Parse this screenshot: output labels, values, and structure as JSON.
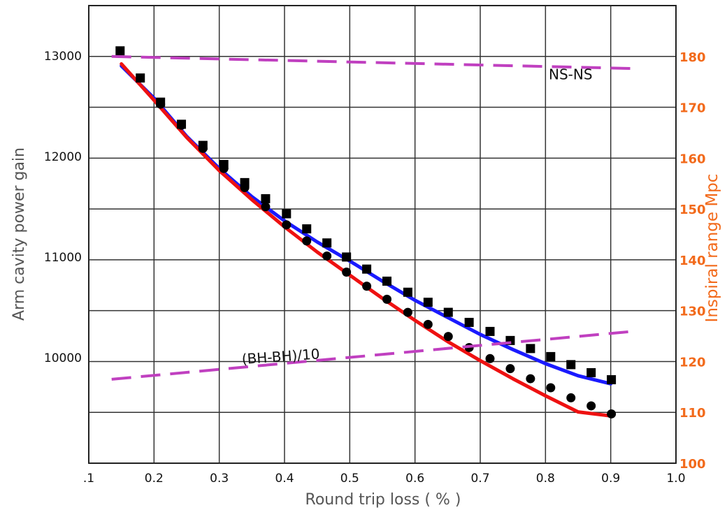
{
  "chart_data": {
    "type": "line",
    "xlabel": "Round trip loss (  %  )",
    "ylabel_left": "Arm cavity power gain",
    "ylabel_right": "Inspiral range Mpc",
    "xlim": [
      0.1,
      1.0
    ],
    "ylim_left": [
      8950,
      13500
    ],
    "ylim_right": [
      100,
      190
    ],
    "grid": true,
    "x_ticks": [
      ".1",
      "0.2",
      "0.3",
      "0.4",
      "0.5",
      "0.6",
      "0.7",
      "0.8",
      "0.9",
      "1.0"
    ],
    "y_ticks_left": [
      "10000",
      "11000",
      "12000",
      "13000"
    ],
    "y_ticks_right": [
      "100",
      "110",
      "120",
      "130",
      "140",
      "150",
      "160",
      "170",
      "180"
    ],
    "annotations": [
      {
        "text": "NS-NS",
        "x": 0.805,
        "y_right": 175.5
      },
      {
        "text": "(BH-BH)/10",
        "x": 0.335,
        "y_right": 119.5
      }
    ],
    "series": [
      {
        "axis": "left",
        "kind": "line",
        "color": "#1a1aff",
        "x": [
          0.15,
          0.2,
          0.25,
          0.3,
          0.35,
          0.4,
          0.45,
          0.5,
          0.55,
          0.6,
          0.65,
          0.7,
          0.75,
          0.8,
          0.85,
          0.9
        ],
        "y": [
          12900,
          12580,
          12200,
          11880,
          11600,
          11360,
          11150,
          10960,
          10760,
          10570,
          10400,
          10230,
          10080,
          9940,
          9820,
          9740
        ]
      },
      {
        "axis": "left",
        "kind": "line",
        "color": "#ee1111",
        "x": [
          0.15,
          0.2,
          0.25,
          0.3,
          0.35,
          0.4,
          0.45,
          0.5,
          0.55,
          0.6,
          0.65,
          0.7,
          0.75,
          0.8,
          0.85,
          0.9
        ],
        "y": [
          12920,
          12560,
          12190,
          11860,
          11570,
          11300,
          11050,
          10820,
          10590,
          10370,
          10160,
          9970,
          9790,
          9620,
          9460,
          9420
        ]
      },
      {
        "axis": "left",
        "kind": "markers",
        "marker": "square",
        "color": "#000000",
        "x": [
          0.148,
          0.179,
          0.21,
          0.242,
          0.275,
          0.307,
          0.339,
          0.371,
          0.403,
          0.434,
          0.465,
          0.495,
          0.526,
          0.557,
          0.589,
          0.62,
          0.651,
          0.683,
          0.715,
          0.746,
          0.777,
          0.808,
          0.839,
          0.87,
          0.901
        ],
        "y": [
          13050,
          12780,
          12540,
          12320,
          12110,
          11920,
          11740,
          11580,
          11430,
          11280,
          11140,
          11000,
          10880,
          10760,
          10650,
          10550,
          10450,
          10350,
          10260,
          10170,
          10090,
          10010,
          9930,
          9850,
          9780
        ]
      },
      {
        "axis": "left",
        "kind": "markers",
        "marker": "circle",
        "color": "#000000",
        "x": [
          0.21,
          0.242,
          0.275,
          0.307,
          0.339,
          0.371,
          0.403,
          0.434,
          0.465,
          0.495,
          0.526,
          0.557,
          0.589,
          0.62,
          0.651,
          0.683,
          0.715,
          0.746,
          0.777,
          0.808,
          0.839,
          0.87,
          0.901
        ],
        "y": [
          12520,
          12310,
          12080,
          11880,
          11690,
          11500,
          11320,
          11160,
          11010,
          10850,
          10710,
          10580,
          10450,
          10330,
          10210,
          10100,
          9990,
          9890,
          9790,
          9700,
          9600,
          9520,
          9440
        ]
      },
      {
        "axis": "right",
        "kind": "dashed",
        "color": "#c040c0",
        "x": [
          0.135,
          0.94
        ],
        "y": [
          180,
          177.6
        ]
      },
      {
        "axis": "right",
        "kind": "dashed",
        "color": "#c040c0",
        "x": [
          0.135,
          0.94
        ],
        "y": [
          116.5,
          126
        ]
      }
    ]
  }
}
